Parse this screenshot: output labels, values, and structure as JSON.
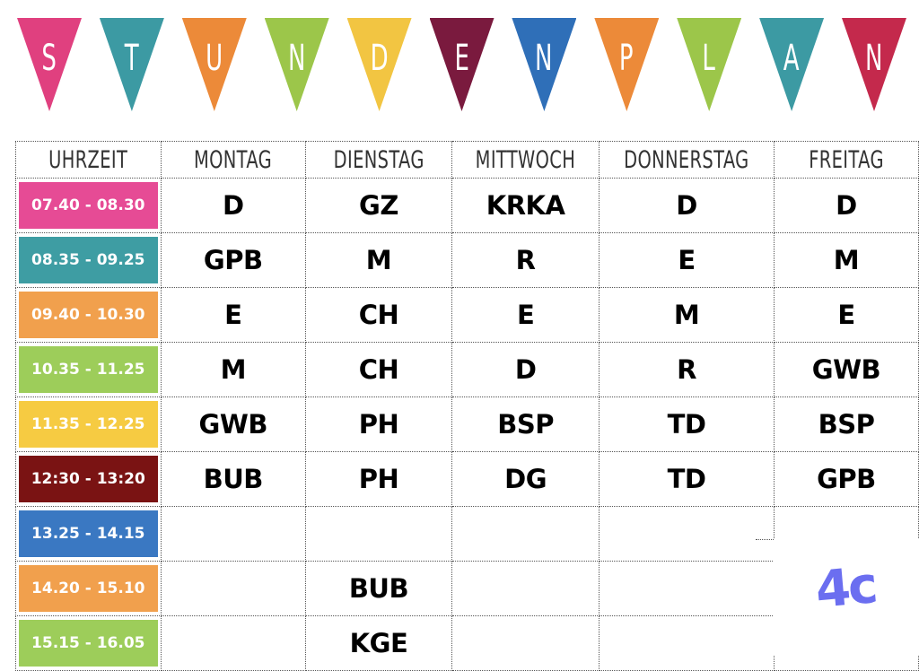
{
  "banner": {
    "flags": [
      {
        "letter": "S",
        "color": "#e0407f"
      },
      {
        "letter": "T",
        "color": "#3c9aa3"
      },
      {
        "letter": "U",
        "color": "#ec8a39"
      },
      {
        "letter": "N",
        "color": "#9cc64a"
      },
      {
        "letter": "D",
        "color": "#f2c542"
      },
      {
        "letter": "E",
        "color": "#7a1a3e"
      },
      {
        "letter": "N",
        "color": "#2f6fb8"
      },
      {
        "letter": "P",
        "color": "#ec8a39"
      },
      {
        "letter": "L",
        "color": "#9cc64a"
      },
      {
        "letter": "A",
        "color": "#3c9aa3"
      },
      {
        "letter": "N",
        "color": "#c4294c"
      }
    ]
  },
  "table": {
    "headers": [
      "UHRZEIT",
      "MONTAG",
      "DIENSTAG",
      "MITTWOCH",
      "DONNERSTAG",
      "FREITAG"
    ],
    "rows": [
      {
        "time": "07.40 - 08.30",
        "color": "#e64b95",
        "cells": [
          "D",
          "GZ",
          "KRKA",
          "D",
          "D"
        ]
      },
      {
        "time": "08.35 - 09.25",
        "color": "#3e9da3",
        "cells": [
          "GPB",
          "M",
          "R",
          "E",
          "M"
        ]
      },
      {
        "time": "09.40 - 10.30",
        "color": "#f1a04d",
        "cells": [
          "E",
          "CH",
          "E",
          "M",
          "E"
        ]
      },
      {
        "time": "10.35 - 11.25",
        "color": "#9dcd5a",
        "cells": [
          "M",
          "CH",
          "D",
          "R",
          "GWB"
        ]
      },
      {
        "time": "11.35 - 12.25",
        "color": "#f6cb42",
        "cells": [
          "GWB",
          "PH",
          "BSP",
          "TD",
          "BSP"
        ]
      },
      {
        "time": "12:30 - 13:20",
        "color": "#7a1313",
        "cells": [
          "BUB",
          "PH",
          "DG",
          "TD",
          "GPB"
        ]
      },
      {
        "time": "13.25 - 14.15",
        "color": "#3a78c2",
        "cells": [
          "",
          "",
          "",
          "",
          ""
        ]
      },
      {
        "time": "14.20 - 15.10",
        "color": "#f1a04d",
        "cells": [
          "",
          "BUB",
          "",
          "",
          ""
        ]
      },
      {
        "time": "15.15 - 16.05",
        "color": "#9dcd5a",
        "cells": [
          "",
          "KGE",
          "",
          "",
          ""
        ]
      }
    ]
  },
  "class_label": "4c"
}
